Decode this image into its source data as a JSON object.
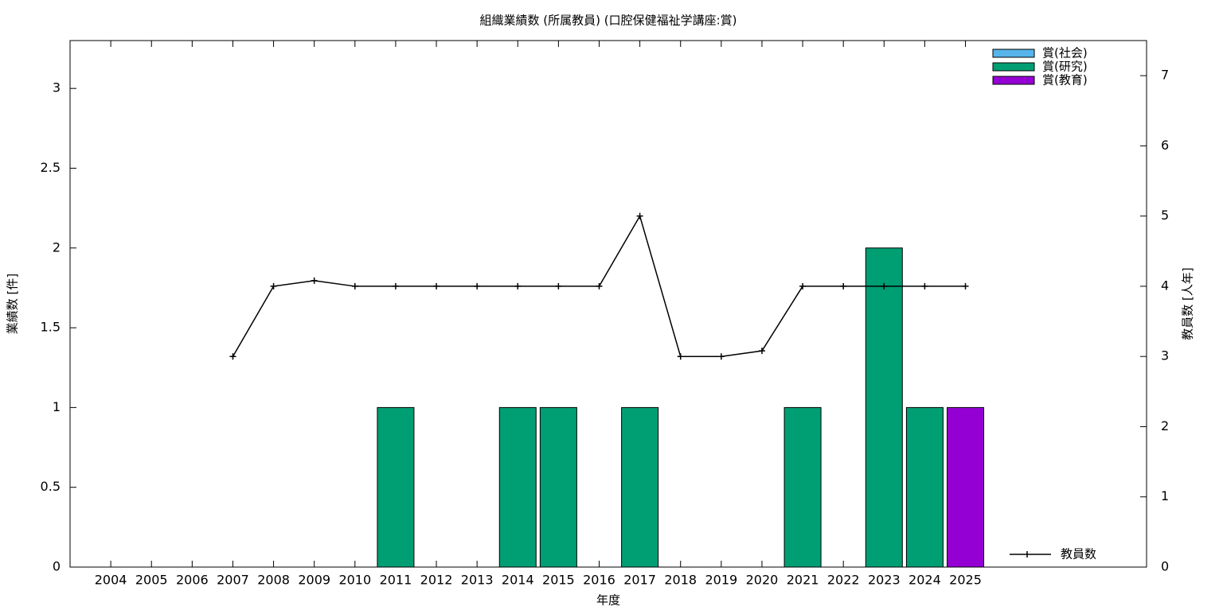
{
  "chart_data": {
    "type": "bar",
    "stacked": true,
    "title": "組織業績数 (所属教員) (口腔保健福祉学講座:賞)",
    "x_label": "年度",
    "y_label": "業績数 [件]",
    "y2_label": "教員数 [人年]",
    "categories": [
      "2004",
      "2005",
      "2006",
      "2007",
      "2008",
      "2009",
      "2010",
      "2011",
      "2012",
      "2013",
      "2014",
      "2015",
      "2016",
      "2017",
      "2018",
      "2019",
      "2020",
      "2021",
      "2022",
      "2023",
      "2024",
      "2025"
    ],
    "series": [
      {
        "name": "賞(社会)",
        "color": "#56b4e9",
        "values": [
          0,
          0,
          0,
          0,
          0,
          0,
          0,
          0,
          0,
          0,
          0,
          0,
          0,
          0,
          0,
          0,
          0,
          0,
          0,
          0,
          0,
          0
        ]
      },
      {
        "name": "賞(研究)",
        "color": "#009e73",
        "values": [
          0,
          0,
          0,
          0,
          0,
          0,
          0,
          1,
          0,
          0,
          1,
          1,
          0,
          1,
          0,
          0,
          0,
          1,
          0,
          2,
          1,
          0
        ]
      },
      {
        "name": "賞(教育)",
        "color": "#9400d3",
        "values": [
          0,
          0,
          0,
          0,
          0,
          0,
          0,
          0,
          0,
          0,
          0,
          0,
          0,
          0,
          0,
          0,
          0,
          0,
          0,
          0,
          0,
          1
        ]
      },
      {
        "name": "教員数",
        "type": "line",
        "axis": "y2",
        "color": "#000000",
        "values": [
          null,
          null,
          null,
          3,
          4,
          4.08,
          4,
          4,
          4,
          4,
          4,
          4,
          4,
          5,
          3,
          3,
          3.08,
          4,
          4,
          4,
          4,
          4
        ]
      }
    ],
    "ylim": [
      0,
      3.3
    ],
    "yticks": [
      0,
      0.5,
      1,
      1.5,
      2,
      2.5,
      3
    ],
    "y2lim": [
      0,
      7.5
    ],
    "y2ticks": [
      0,
      1,
      2,
      3,
      4,
      5,
      6,
      7
    ],
    "grid": false
  }
}
